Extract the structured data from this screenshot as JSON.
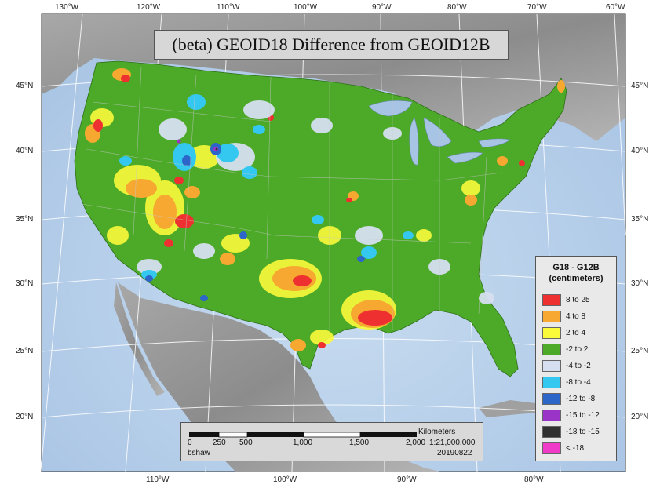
{
  "title": "(beta) GEOID18 Difference from GEOID12B",
  "longitude_labels_top": [
    "130°W",
    "120°W",
    "110°W",
    "100°W",
    "90°W",
    "80°W",
    "70°W",
    "60°W"
  ],
  "longitude_labels_bottom": [
    "110°W",
    "100°W",
    "90°W",
    "80°W"
  ],
  "latitude_labels": [
    "45°N",
    "40°N",
    "35°N",
    "30°N",
    "25°N",
    "20°N"
  ],
  "legend": {
    "title_line1": "G18 - G12B",
    "title_line2": "(centimeters)",
    "items": [
      {
        "label": "8 to 25",
        "color": "#ee3030"
      },
      {
        "label": "4 to 8",
        "color": "#f6a830"
      },
      {
        "label": "2 to 4",
        "color": "#fafa3a"
      },
      {
        "label": "-2 to 2",
        "color": "#4caa28"
      },
      {
        "label": "-4 to -2",
        "color": "#d6dff0"
      },
      {
        "label": "-8 to -4",
        "color": "#34c8f0"
      },
      {
        "label": "-12 to -8",
        "color": "#2c66c8"
      },
      {
        "label": "-15 to -12",
        "color": "#9a34c8"
      },
      {
        "label": "-18 to -15",
        "color": "#303030"
      },
      {
        "label": "< -18",
        "color": "#f03ac8"
      }
    ]
  },
  "scale": {
    "unit": "Kilometers",
    "ticks": [
      "0",
      "250",
      "500",
      "1,000",
      "1,500",
      "2,000"
    ],
    "ratio": "1:21,000,000",
    "author": "bshaw",
    "date": "20190822"
  }
}
